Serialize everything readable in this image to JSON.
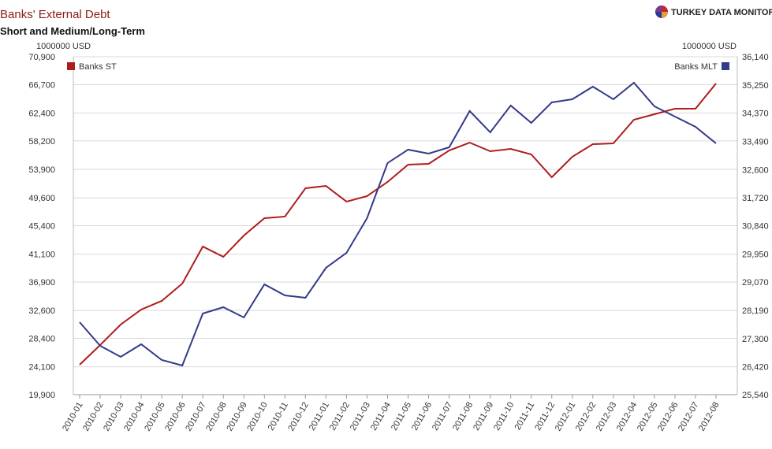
{
  "chart_data": {
    "type": "line",
    "title": "Banks' External Debt",
    "subtitle": "Short and Medium/Long-Term",
    "brand": "TURKEY DATA MONITOR",
    "y_label": "1000000 USD",
    "y2_label": "1000000 USD",
    "categories": [
      "2010-01",
      "2010-02",
      "2010-03",
      "2010-04",
      "2010-05",
      "2010-06",
      "2010-07",
      "2010-08",
      "2010-09",
      "2010-10",
      "2010-11",
      "2010-12",
      "2011-01",
      "2011-02",
      "2011-03",
      "2011-04",
      "2011-05",
      "2011-06",
      "2011-07",
      "2011-08",
      "2011-09",
      "2011-10",
      "2011-11",
      "2011-12",
      "2012-01",
      "2012-02",
      "2012-03",
      "2012-04",
      "2012-05",
      "2012-06",
      "2012-07",
      "2012-08"
    ],
    "series": [
      {
        "name": "Banks ST",
        "color": "#b01c1c",
        "axis": "y",
        "values": [
          24418,
          27390,
          30480,
          32740,
          34050,
          36660,
          42250,
          40700,
          43910,
          46530,
          46770,
          51050,
          51400,
          49030,
          49860,
          52000,
          54610,
          54730,
          56750,
          57940,
          56630,
          56990,
          56160,
          52710,
          55800,
          57700,
          57820,
          61390,
          62220,
          63050,
          63050,
          66860
        ]
      },
      {
        "name": "Banks MLT",
        "color": "#333a8a",
        "axis": "y2",
        "values": [
          27813,
          27072,
          26726,
          27121,
          26627,
          26454,
          28085,
          28283,
          27962,
          29000,
          28653,
          28579,
          29518,
          29988,
          31075,
          32805,
          33225,
          33101,
          33299,
          34436,
          33768,
          34609,
          34065,
          34708,
          34806,
          35202,
          34806,
          35325,
          34584,
          34263,
          33941,
          33422
        ]
      }
    ],
    "ylim": [
      19900,
      70900
    ],
    "yticks": [
      {
        "value": 19900,
        "label": "19,900"
      },
      {
        "value": 24100,
        "label": "24,100"
      },
      {
        "value": 28400,
        "label": "28,400"
      },
      {
        "value": 32600,
        "label": "32,600"
      },
      {
        "value": 36900,
        "label": "36,900"
      },
      {
        "value": 41100,
        "label": "41,100"
      },
      {
        "value": 45400,
        "label": "45,400"
      },
      {
        "value": 49600,
        "label": "49,600"
      },
      {
        "value": 53900,
        "label": "53,900"
      },
      {
        "value": 58200,
        "label": "58,200"
      },
      {
        "value": 62400,
        "label": "62,400"
      },
      {
        "value": 66700,
        "label": "66,700"
      },
      {
        "value": 70900,
        "label": "70,900"
      }
    ],
    "y2lim": [
      25540,
      36140
    ],
    "y2ticks": [
      {
        "value": 25540,
        "label": "25,540"
      },
      {
        "value": 26420,
        "label": "26,420"
      },
      {
        "value": 27300,
        "label": "27,300"
      },
      {
        "value": 28190,
        "label": "28,190"
      },
      {
        "value": 29070,
        "label": "29,070"
      },
      {
        "value": 29950,
        "label": "29,950"
      },
      {
        "value": 30840,
        "label": "30,840"
      },
      {
        "value": 31720,
        "label": "31,720"
      },
      {
        "value": 32600,
        "label": "32,600"
      },
      {
        "value": 33490,
        "label": "33,490"
      },
      {
        "value": 34370,
        "label": "34,370"
      },
      {
        "value": 35250,
        "label": "35,250"
      },
      {
        "value": 36140,
        "label": "36,140"
      }
    ],
    "grid": true
  }
}
